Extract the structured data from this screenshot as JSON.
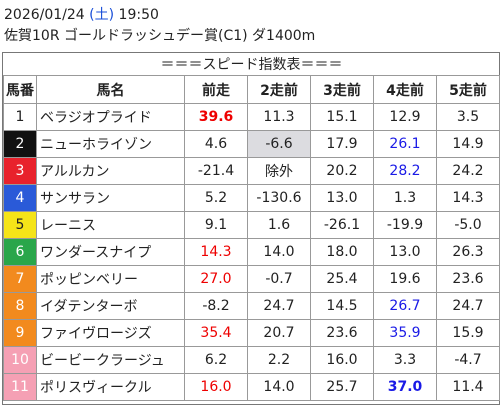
{
  "header": {
    "date": "2026/01/24",
    "weekday_open": "(",
    "weekday": "土",
    "weekday_close": ")",
    "time": "19:50",
    "race": "佐賀10R ゴールドラッシュデー賞(C1) ダ1400m"
  },
  "table": {
    "title": "＝＝＝スピード指数表＝＝＝",
    "columns": [
      "馬番",
      "馬名",
      "前走",
      "2走前",
      "3走前",
      "4走前",
      "5走前"
    ],
    "rows": [
      [
        "1",
        "ベラジオプライド",
        "39.6",
        "11.3",
        "15.1",
        "12.9",
        "3.5"
      ],
      [
        "2",
        "ニューホライゾン",
        "4.6",
        "-6.6",
        "17.9",
        "26.1",
        "14.9"
      ],
      [
        "3",
        "アルルカン",
        "-21.4",
        "除外",
        "20.2",
        "28.2",
        "24.2"
      ],
      [
        "4",
        "サンサラン",
        "5.2",
        "-130.6",
        "13.0",
        "1.3",
        "14.3"
      ],
      [
        "5",
        "レーニス",
        "9.1",
        "1.6",
        "-26.1",
        "-19.9",
        "-5.0"
      ],
      [
        "6",
        "ワンダースナイプ",
        "14.3",
        "14.0",
        "18.0",
        "13.0",
        "26.3"
      ],
      [
        "7",
        "ポッピンベリー",
        "27.0",
        "-0.7",
        "25.4",
        "19.6",
        "23.6"
      ],
      [
        "8",
        "イダテンターボ",
        "-8.2",
        "24.7",
        "14.5",
        "26.7",
        "24.7"
      ],
      [
        "9",
        "ファイヴロージズ",
        "35.4",
        "20.7",
        "23.6",
        "35.9",
        "15.9"
      ],
      [
        "10",
        "ビービークラージュ",
        "6.2",
        "2.2",
        "16.0",
        "3.3",
        "-4.7"
      ],
      [
        "11",
        "ポリスヴィークル",
        "16.0",
        "14.0",
        "25.7",
        "37.0",
        "11.4"
      ]
    ]
  }
}
